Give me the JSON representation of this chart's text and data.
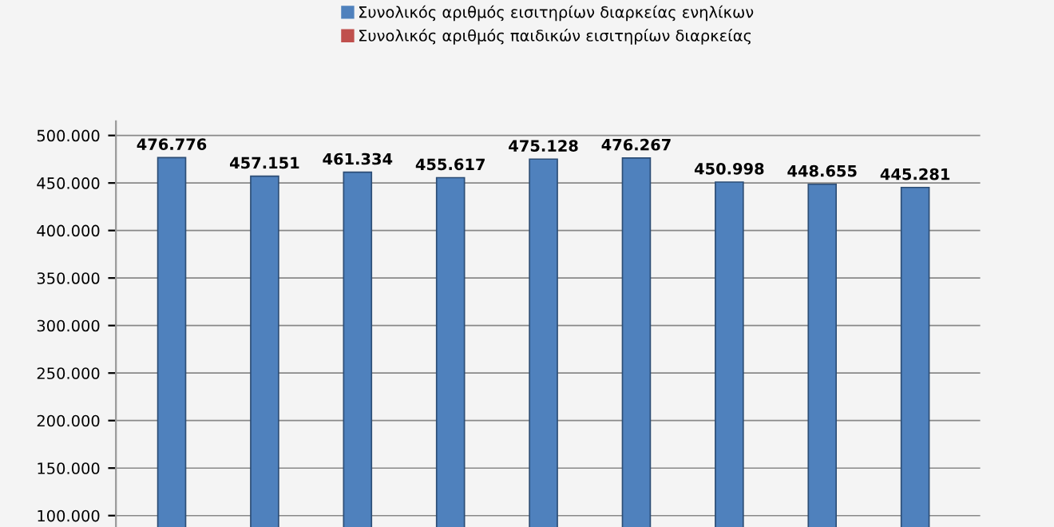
{
  "chart_data": {
    "type": "bar",
    "categories": [
      null,
      null,
      null,
      null,
      null,
      null,
      null,
      null,
      null
    ],
    "series": [
      {
        "name": "Συνολικός αριθμός εισιτηρίων διαρκείας ενηλίκων",
        "color": "#4f81bd",
        "values": [
          476776,
          457151,
          461334,
          455617,
          475128,
          476267,
          450998,
          448655,
          445281
        ],
        "value_labels": [
          "476.776",
          "457.151",
          "461.334",
          "455.617",
          "475.128",
          "476.267",
          "450.998",
          "448.655",
          "445.281"
        ]
      },
      {
        "name": "Συνολικός αριθμός παιδικών εισιτηρίων διαρκείας",
        "color": "#c0504d",
        "values": [
          null,
          null,
          null,
          null,
          null,
          null,
          null,
          null,
          null
        ]
      }
    ],
    "ylim": [
      88000,
      515000
    ],
    "yticks": [
      {
        "value": 100000,
        "label": "100.000"
      },
      {
        "value": 150000,
        "label": "150.000"
      },
      {
        "value": 200000,
        "label": "200.000"
      },
      {
        "value": 250000,
        "label": "250.000"
      },
      {
        "value": 300000,
        "label": "300.000"
      },
      {
        "value": 350000,
        "label": "350.000"
      },
      {
        "value": 400000,
        "label": "400.000"
      },
      {
        "value": 450000,
        "label": "450.000"
      },
      {
        "value": 500000,
        "label": "500.000"
      }
    ],
    "grid": "y",
    "legend": "top"
  }
}
